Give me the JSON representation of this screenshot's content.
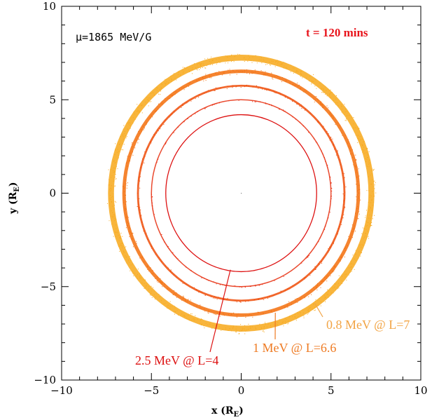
{
  "chart_data": {
    "type": "scatter",
    "title": "",
    "xlabel": "x (R",
    "xlabel_sub": "E",
    "ylabel": "y (R",
    "ylabel_sub": "E",
    "xlim": [
      -10,
      10
    ],
    "ylim": [
      -10,
      10
    ],
    "x_ticks": [
      -10,
      -5,
      0,
      5,
      10
    ],
    "y_ticks": [
      -10,
      -5,
      0,
      5,
      10
    ],
    "x_tick_labels": [
      "−10",
      "−5",
      "0",
      "5",
      "10"
    ],
    "y_tick_labels": [
      "−10",
      "−5",
      "0",
      "5",
      "10"
    ],
    "grid": false,
    "mu_label": "μ=1865 MeV/G",
    "time_label": "t = 120 mins",
    "series": [
      {
        "name": "2.5 MeV @ L=4",
        "r_inner": 4.2,
        "r_outer": 4.2,
        "color": "#dd1111"
      },
      {
        "name": "",
        "r_inner": 4.95,
        "r_outer": 5.05,
        "color": "#e62a0a"
      },
      {
        "name": "",
        "r_inner": 5.65,
        "r_outer": 5.85,
        "color": "#ee4c08"
      },
      {
        "name": "1 MeV @ L=6.6",
        "r_inner": 6.35,
        "r_outer": 6.7,
        "color": "#f36e0c"
      },
      {
        "name": "0.8 MeV @ L=7",
        "r_inner": 6.95,
        "r_outer": 7.55,
        "color": "#f7a81a"
      }
    ],
    "center_point": [
      0,
      0
    ],
    "annotations": [
      {
        "text": "2.5 MeV @ L=4",
        "color": "#dd1111",
        "points_to": [
          -0.6,
          -4.1
        ]
      },
      {
        "text": "1 MeV @ L=6.6",
        "color": "#ee7a22",
        "points_to": [
          1.9,
          -6.4
        ]
      },
      {
        "text": "0.8 MeV @ L=7",
        "color": "#f2a444",
        "points_to": [
          4.1,
          -5.9
        ]
      }
    ]
  }
}
